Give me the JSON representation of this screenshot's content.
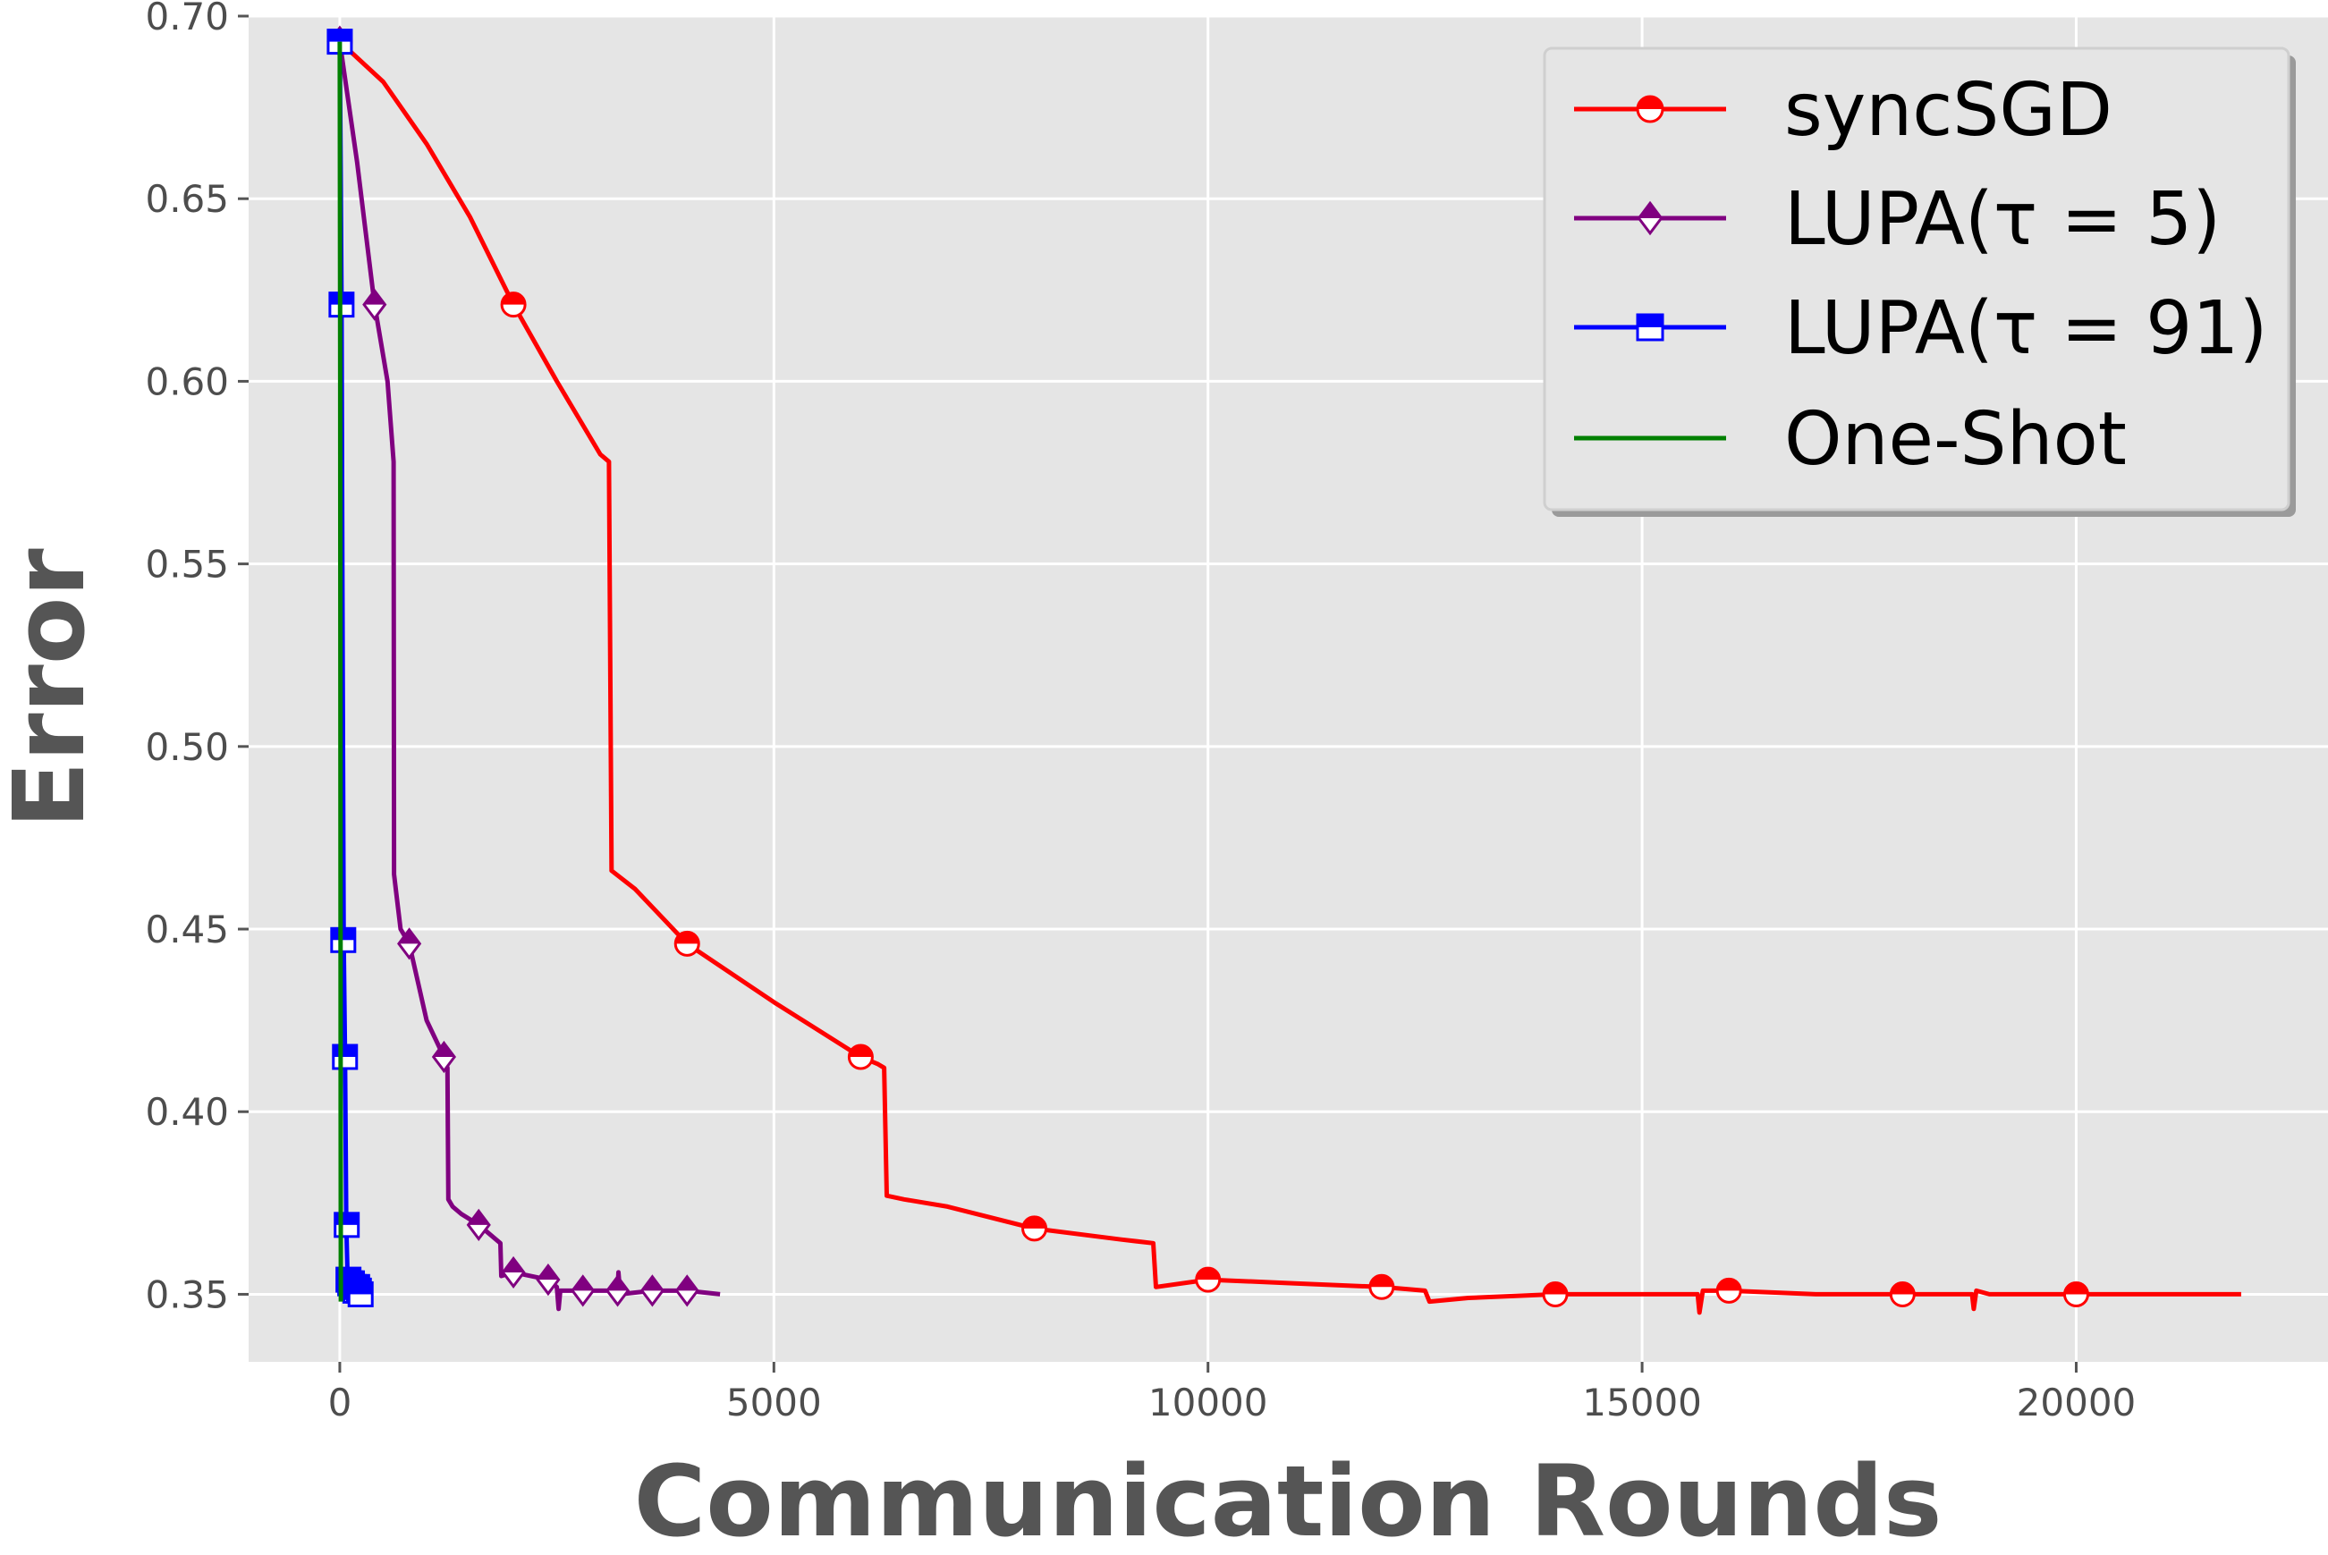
{
  "chart_data": {
    "type": "line",
    "title": "",
    "xlabel": "Communication Rounds",
    "ylabel": "Error",
    "xlim": [
      -1050,
      22900
    ],
    "ylim": [
      0.3315,
      0.7
    ],
    "xticks": [
      0,
      5000,
      10000,
      15000,
      20000
    ],
    "yticks": [
      0.35,
      0.4,
      0.45,
      0.5,
      0.55,
      0.6,
      0.65,
      0.7
    ],
    "xtick_labels": [
      "0",
      "5000",
      "10000",
      "15000",
      "20000"
    ],
    "ytick_labels": [
      "0.35",
      "0.40",
      "0.45",
      "0.50",
      "0.55",
      "0.60",
      "0.65",
      "0.70"
    ],
    "grid": true,
    "legend_position": "top-right",
    "series": [
      {
        "name": "syncSGD",
        "color": "#ff0000",
        "marker": "circle",
        "x": [
          0,
          500,
          1000,
          1500,
          2000,
          2500,
          3000,
          3100,
          3130,
          3400,
          4000,
          5000,
          6000,
          6200,
          6270,
          6300,
          6500,
          7000,
          8000,
          9000,
          9370,
          9400,
          10000,
          11000,
          12000,
          12500,
          12550,
          13000,
          14000,
          15000,
          15640,
          15660,
          15700,
          16000,
          17000,
          18000,
          18800,
          18820,
          18850,
          19000,
          20000,
          21000,
          21900
        ],
        "y": [
          0.693,
          0.682,
          0.665,
          0.645,
          0.621,
          0.6,
          0.58,
          0.578,
          0.466,
          0.461,
          0.446,
          0.43,
          0.415,
          0.413,
          0.412,
          0.377,
          0.376,
          0.374,
          0.368,
          0.365,
          0.364,
          0.352,
          0.354,
          0.353,
          0.352,
          0.351,
          0.348,
          0.349,
          0.35,
          0.35,
          0.35,
          0.345,
          0.351,
          0.351,
          0.35,
          0.35,
          0.35,
          0.346,
          0.351,
          0.35,
          0.35,
          0.35,
          0.35
        ],
        "marker_x": [
          0,
          2000,
          4000,
          6000,
          8000,
          10000,
          12000,
          14000,
          16000,
          18000,
          20000
        ],
        "marker_y": [
          0.693,
          0.621,
          0.446,
          0.415,
          0.368,
          0.354,
          0.352,
          0.35,
          0.351,
          0.35,
          0.35
        ]
      },
      {
        "name": "LUPA(τ = 5)",
        "color": "#800080",
        "marker": "diamond",
        "x": [
          0,
          200,
          400,
          550,
          620,
          625,
          650,
          700,
          800,
          1000,
          1200,
          1240,
          1250,
          1300,
          1400,
          1600,
          1850,
          1860,
          2000,
          2400,
          2500,
          2520,
          2540,
          2800,
          3200,
          3210,
          3230,
          3600,
          4000,
          4380
        ],
        "y": [
          0.693,
          0.66,
          0.621,
          0.6,
          0.578,
          0.465,
          0.46,
          0.45,
          0.446,
          0.425,
          0.415,
          0.412,
          0.376,
          0.374,
          0.372,
          0.369,
          0.364,
          0.355,
          0.356,
          0.354,
          0.352,
          0.346,
          0.351,
          0.351,
          0.351,
          0.356,
          0.35,
          0.351,
          0.351,
          0.35
        ],
        "marker_x": [
          0,
          400,
          800,
          1200,
          1600,
          2000,
          2400,
          2800,
          3200,
          3600,
          4000
        ],
        "marker_y": [
          0.693,
          0.621,
          0.446,
          0.415,
          0.369,
          0.356,
          0.354,
          0.351,
          0.351,
          0.351,
          0.351
        ]
      },
      {
        "name": "LUPA(τ = 91)",
        "color": "#0000ff",
        "marker": "square",
        "x": [
          0,
          10,
          20,
          30,
          45,
          60,
          75,
          90,
          120,
          150,
          180,
          200,
          220,
          240,
          260,
          270
        ],
        "y": [
          0.693,
          0.66,
          0.621,
          0.55,
          0.447,
          0.415,
          0.369,
          0.354,
          0.353,
          0.352,
          0.351,
          0.352,
          0.35,
          0.351,
          0.35,
          0.35
        ],
        "marker_x": [
          0,
          20,
          40,
          60,
          80,
          100,
          120,
          140,
          160,
          180,
          200,
          220,
          240
        ],
        "marker_y": [
          0.693,
          0.621,
          0.447,
          0.415,
          0.369,
          0.354,
          0.353,
          0.353,
          0.352,
          0.351,
          0.352,
          0.351,
          0.35
        ]
      },
      {
        "name": "One-Shot",
        "color": "#008000",
        "marker": "none",
        "x": [
          0,
          5,
          10,
          12
        ],
        "y": [
          0.693,
          0.6,
          0.4,
          0.348
        ]
      }
    ]
  },
  "legend": {
    "items": [
      {
        "label": "syncSGD",
        "color": "#ff0000",
        "marker": "circle"
      },
      {
        "label": "LUPA(τ = 5)",
        "color": "#800080",
        "marker": "diamond"
      },
      {
        "label": "LUPA(τ = 91)",
        "color": "#0000ff",
        "marker": "square"
      },
      {
        "label": "One-Shot",
        "color": "#008000",
        "marker": "none"
      }
    ]
  },
  "colors": {
    "plot_background": "#e5e5e5",
    "grid": "#ffffff",
    "tick_text": "#4d4d4d",
    "axis_title": "#555555"
  }
}
